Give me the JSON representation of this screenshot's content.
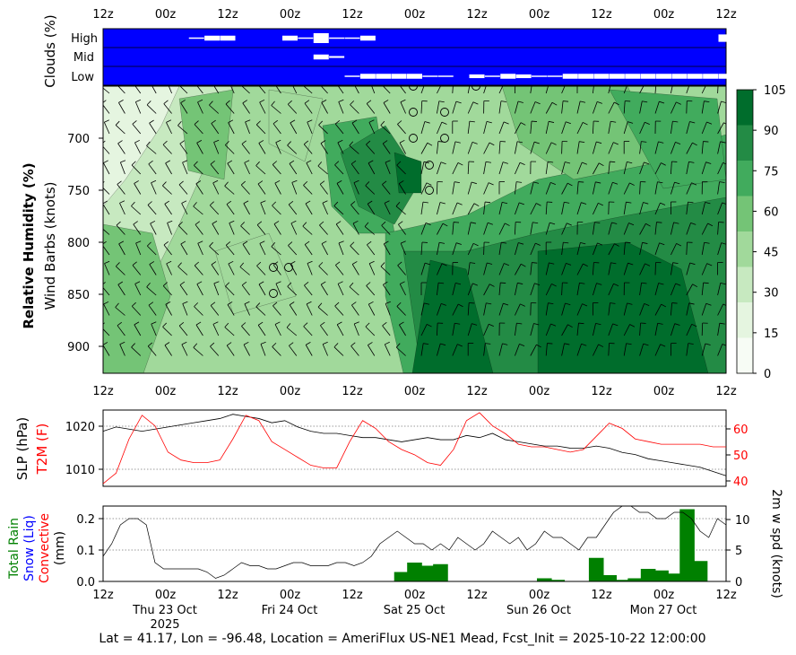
{
  "cloud_panel": {
    "ylabel": "Clouds (%)",
    "levels": [
      "High",
      "Mid",
      "Low"
    ],
    "bg_color": "#0000ff",
    "x_top_ticks": [
      "12z",
      "00z",
      "12z",
      "00z",
      "12z",
      "00z",
      "12z",
      "00z",
      "12z",
      "00z",
      "12z"
    ]
  },
  "rh_panel": {
    "ylabel_bold": "Relative Humidity (%)",
    "ylabel": "Wind Barbs (knots)",
    "y_ticks": [
      "700",
      "750",
      "800",
      "850",
      "900"
    ],
    "x_ticks": [
      "12z",
      "00z",
      "12z",
      "00z",
      "12z",
      "00z",
      "12z",
      "00z",
      "12z",
      "00z",
      "12z"
    ],
    "colorbar_ticks": [
      "0",
      "15",
      "30",
      "45",
      "60",
      "75",
      "90",
      "105"
    ],
    "colorbar_colors": [
      "#f7fcf5",
      "#e5f5e0",
      "#c7e9c0",
      "#a1d99b",
      "#74c476",
      "#41ab5d",
      "#238b45",
      "#006d2c"
    ]
  },
  "slp_panel": {
    "ylabel_left": "SLP (hPa)",
    "ylabel_red": "T2M (F)",
    "left_ticks": [
      "1020",
      "1010"
    ],
    "right_ticks": [
      "60",
      "50",
      "40"
    ],
    "red_color": "#ff0000"
  },
  "precip_panel": {
    "ylabel_green": "Total Rain",
    "ylabel_blue": "Snow (Liq)",
    "ylabel_red": "Convective",
    "ylabel_unit": "(mm)",
    "ylabel_right": "2m w spd (knots)",
    "left_ticks": [
      "0.2",
      "0.1",
      "0.0"
    ],
    "right_ticks": [
      "10",
      "5",
      "0"
    ],
    "x_ticks": [
      "12z",
      "00z",
      "12z",
      "00z",
      "12z",
      "00z",
      "12z",
      "00z",
      "12z",
      "00z",
      "12z"
    ],
    "date_labels": [
      "Thu 23 Oct",
      "Fri 24 Oct",
      "Sat 25 Oct",
      "Sun 26 Oct",
      "Mon 27 Oct"
    ],
    "year_label": "2025",
    "bar_color": "#008000"
  },
  "footer": "Lat = 41.17, Lon = -96.48, Location = AmeriFlux US-NE1 Mead, Fcst_Init = 2025-10-22 12:00:00",
  "chart_data": [
    {
      "type": "heatmap",
      "title": "Clouds (%)",
      "x_unit": "hours since 2025-10-22 12z",
      "high": [
        [
          0,
          0
        ],
        [
          6,
          0
        ],
        [
          12,
          0
        ],
        [
          18,
          5
        ],
        [
          21,
          40
        ],
        [
          24,
          40
        ],
        [
          30,
          0
        ],
        [
          36,
          40
        ],
        [
          39,
          10
        ],
        [
          42,
          80
        ],
        [
          45,
          10
        ],
        [
          48,
          10
        ],
        [
          51,
          40
        ],
        [
          54,
          0
        ],
        [
          60,
          0
        ],
        [
          66,
          0
        ],
        [
          72,
          0
        ],
        [
          78,
          0
        ],
        [
          84,
          0
        ],
        [
          90,
          0
        ],
        [
          96,
          0
        ],
        [
          102,
          0
        ],
        [
          108,
          0
        ],
        [
          114,
          0
        ],
        [
          120,
          60
        ],
        [
          123,
          60
        ],
        [
          126,
          0
        ],
        [
          132,
          0
        ]
      ],
      "mid": [
        [
          0,
          0
        ],
        [
          42,
          40
        ],
        [
          45,
          15
        ],
        [
          132,
          0
        ],
        [
          144,
          5
        ]
      ],
      "low": [
        [
          0,
          0
        ],
        [
          48,
          5
        ],
        [
          51,
          40
        ],
        [
          54,
          40
        ],
        [
          57,
          40
        ],
        [
          60,
          40
        ],
        [
          63,
          10
        ],
        [
          66,
          10
        ],
        [
          69,
          0
        ],
        [
          72,
          30
        ],
        [
          75,
          10
        ],
        [
          78,
          40
        ],
        [
          81,
          30
        ],
        [
          84,
          10
        ],
        [
          87,
          10
        ],
        [
          90,
          40
        ],
        [
          93,
          40
        ],
        [
          96,
          40
        ],
        [
          99,
          40
        ],
        [
          102,
          40
        ],
        [
          105,
          40
        ],
        [
          108,
          40
        ],
        [
          111,
          40
        ],
        [
          114,
          40
        ],
        [
          117,
          40
        ],
        [
          120,
          40
        ]
      ]
    },
    {
      "type": "heatmap",
      "title": "Relative Humidity (%)",
      "ylabel": "Wind Barbs (knots)",
      "ylim": [
        925,
        660
      ],
      "zlim": [
        0,
        105
      ]
    },
    {
      "type": "line",
      "series": [
        {
          "name": "SLP (hPa)",
          "axis": "left",
          "x": [
            0,
            3,
            6,
            9,
            12,
            15,
            18,
            21,
            24,
            27,
            30,
            33,
            36,
            39,
            42,
            45,
            48,
            51,
            54,
            57,
            60,
            63,
            66,
            69,
            72,
            75,
            78,
            81,
            84,
            87,
            90,
            93,
            96,
            99,
            102,
            105,
            108,
            111,
            114,
            117,
            120,
            123,
            126,
            129,
            132,
            135,
            138,
            141,
            144
          ],
          "values": [
            1019,
            1020,
            1019.5,
            1019,
            1019.5,
            1020,
            1020.5,
            1021,
            1021.5,
            1022,
            1023,
            1022.5,
            1022,
            1021,
            1021.5,
            1020,
            1019,
            1018.5,
            1018.5,
            1018,
            1017.5,
            1017.5,
            1017,
            1016.5,
            1017,
            1017.5,
            1017,
            1017,
            1018,
            1017.5,
            1018.5,
            1017,
            1016.5,
            1016,
            1015.5,
            1015.5,
            1015,
            1015,
            1015.5,
            1015,
            1014,
            1013.5,
            1012.5,
            1012,
            1011.5,
            1011,
            1010.5,
            1009.5,
            1008.5
          ]
        },
        {
          "name": "T2M (F)",
          "axis": "right",
          "x": [
            0,
            3,
            6,
            9,
            12,
            15,
            18,
            21,
            24,
            27,
            30,
            33,
            36,
            39,
            42,
            45,
            48,
            51,
            54,
            57,
            60,
            63,
            66,
            69,
            72,
            75,
            78,
            81,
            84,
            87,
            90,
            93,
            96,
            99,
            102,
            105,
            108,
            111,
            114,
            117,
            120,
            123,
            126,
            129,
            132,
            135,
            138,
            141,
            144
          ],
          "values": [
            39,
            43,
            56,
            65,
            61,
            51,
            48,
            47,
            47,
            48,
            56,
            65,
            63,
            55,
            52,
            49,
            46,
            45,
            45,
            55,
            63,
            60,
            55,
            52,
            50,
            47,
            46,
            52,
            63,
            66,
            61,
            58,
            54,
            53,
            53,
            52,
            51,
            52,
            57,
            62,
            60,
            56,
            55,
            54,
            54,
            54,
            54,
            53,
            53
          ]
        }
      ],
      "ylim_left": [
        1006,
        1024
      ],
      "ylim_right": [
        38,
        67
      ]
    },
    {
      "type": "bar",
      "title": "Total Rain (mm)",
      "x_hours": [
        69,
        72,
        75,
        78,
        81,
        102,
        105,
        114,
        117,
        120,
        123,
        126,
        129,
        132,
        135,
        138,
        141,
        144
      ],
      "values": [
        0.03,
        0.06,
        0.05,
        0.055,
        0.0,
        0.01,
        0.005,
        0.075,
        0.02,
        0.005,
        0.01,
        0.04,
        0.035,
        0.025,
        0.23,
        0.065,
        0.0,
        0.0
      ],
      "ylim": [
        0,
        0.24
      ],
      "wind_series": {
        "name": "2m w spd (knots)",
        "x": [
          0,
          2,
          4,
          6,
          8,
          10,
          12,
          14,
          16,
          18,
          20,
          22,
          24,
          26,
          28,
          30,
          32,
          34,
          36,
          38,
          40,
          42,
          44,
          46,
          48,
          50,
          52,
          54,
          56,
          58,
          60,
          62,
          64,
          66,
          68,
          70,
          72,
          74,
          76,
          78,
          80,
          82,
          84,
          86,
          88,
          90,
          92,
          94,
          96,
          98,
          100,
          102,
          104,
          106,
          108,
          110,
          112,
          114,
          116,
          118,
          120,
          122,
          124,
          126,
          128,
          130,
          132,
          134,
          136,
          138,
          140,
          142,
          144
        ],
        "values": [
          4,
          6,
          9,
          10,
          10,
          9,
          3,
          2,
          2,
          2,
          2,
          2,
          1.5,
          0.5,
          1,
          2,
          3,
          2.5,
          2.5,
          2,
          2,
          2.5,
          3,
          3,
          2.5,
          2.5,
          2.5,
          3,
          3,
          2.5,
          3,
          4,
          6,
          7,
          8,
          7,
          6,
          6,
          5,
          6,
          5,
          7,
          6,
          5,
          6,
          8,
          7,
          6,
          7,
          5,
          6,
          8,
          7,
          7,
          6,
          5,
          7,
          7,
          9,
          11,
          12,
          12,
          11,
          11,
          10,
          10,
          11,
          11,
          10,
          8,
          7,
          10,
          9
        ]
      },
      "ylim_right": [
        0,
        12
      ]
    }
  ]
}
